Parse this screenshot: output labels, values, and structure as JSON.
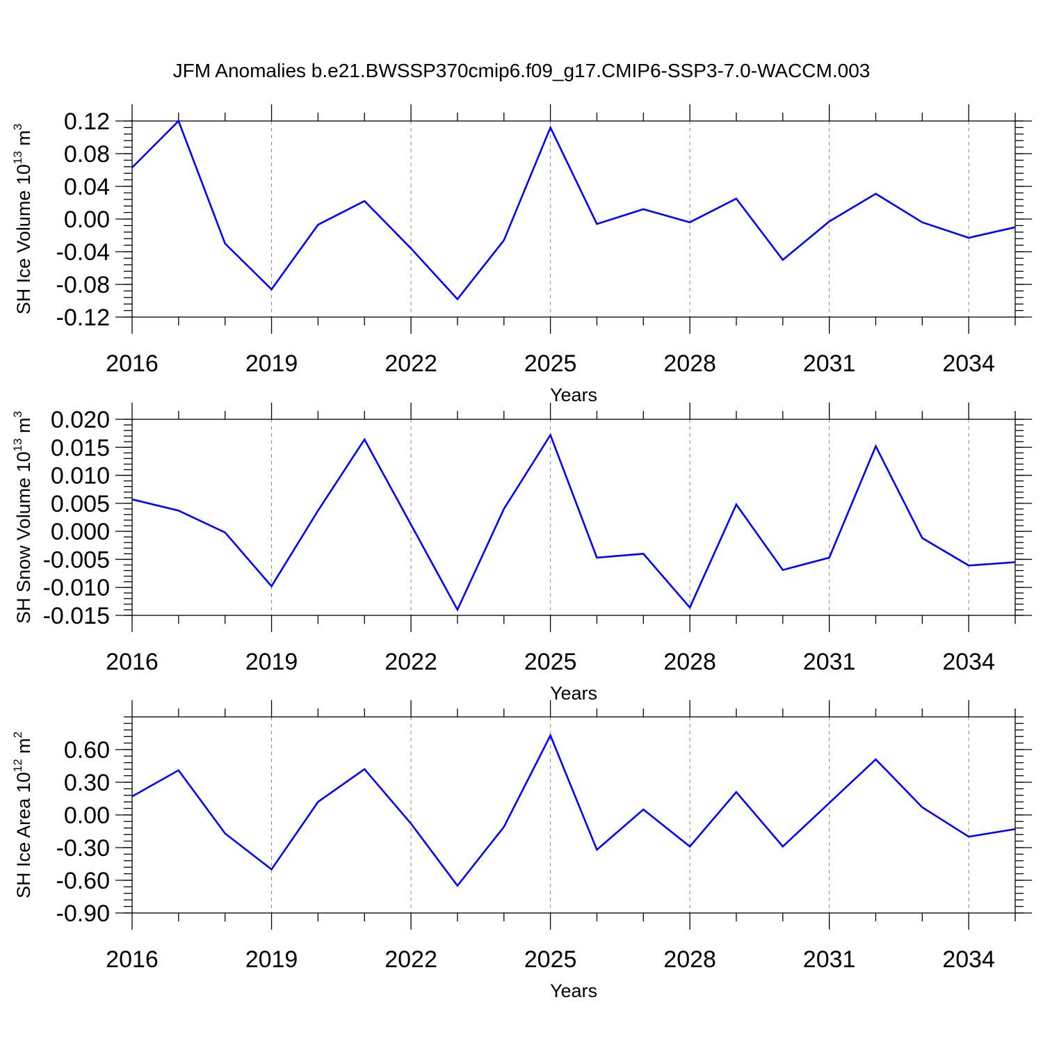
{
  "title": "JFM Anomalies b.e21.BWSSP370cmip6.f09_g17.CMIP6-SSP3-7.0-WACCM.003",
  "colors": {
    "line": "#0000ff",
    "axes": "#000000",
    "grid": "#888888",
    "background": "#ffffff"
  },
  "chart_data": [
    {
      "type": "line",
      "xlabel": "Years",
      "ylabel": {
        "prefix": "SH Ice Volume 10",
        "exponent": "13",
        "unit": " m",
        "unit_exponent": "3"
      },
      "xlim": [
        2016,
        2035
      ],
      "ylim": [
        -0.12,
        0.12
      ],
      "x_ticks": [
        "2016",
        "2019",
        "2022",
        "2025",
        "2028",
        "2031",
        "2034"
      ],
      "y_ticks": [
        "0.12",
        "0.08",
        "0.04",
        "0.00",
        "-0.04",
        "-0.08",
        "-0.12"
      ],
      "y_tick_values": [
        0.12,
        0.08,
        0.04,
        0.0,
        -0.04,
        -0.08,
        -0.12
      ],
      "grid": "vertical dashed at labeled years",
      "series": [
        {
          "x": [
            2016,
            2017,
            2018,
            2019,
            2020,
            2021,
            2022,
            2023,
            2024,
            2025,
            2026,
            2027,
            2028,
            2029,
            2030,
            2031,
            2032,
            2033,
            2034,
            2035
          ],
          "values": [
            0.063,
            0.12,
            -0.03,
            -0.086,
            -0.007,
            0.022,
            -0.036,
            -0.098,
            -0.026,
            0.112,
            -0.006,
            0.012,
            -0.004,
            0.025,
            -0.05,
            -0.003,
            0.031,
            -0.004,
            -0.023,
            -0.01
          ]
        }
      ]
    },
    {
      "type": "line",
      "xlabel": "Years",
      "ylabel": {
        "prefix": "SH Snow Volume 10",
        "exponent": "13",
        "unit": " m",
        "unit_exponent": "3"
      },
      "xlim": [
        2016,
        2035
      ],
      "ylim": [
        -0.015,
        0.02
      ],
      "x_ticks": [
        "2016",
        "2019",
        "2022",
        "2025",
        "2028",
        "2031",
        "2034"
      ],
      "y_ticks": [
        "0.020",
        "0.015",
        "0.010",
        "0.005",
        "0.000",
        "-0.005",
        "-0.010",
        "-0.015"
      ],
      "y_tick_values": [
        0.02,
        0.015,
        0.01,
        0.005,
        0.0,
        -0.005,
        -0.01,
        -0.015
      ],
      "grid": "vertical dashed at labeled years",
      "series": [
        {
          "x": [
            2016,
            2017,
            2018,
            2019,
            2020,
            2021,
            2022,
            2023,
            2024,
            2025,
            2026,
            2027,
            2028,
            2029,
            2030,
            2031,
            2032,
            2033,
            2034,
            2035
          ],
          "values": [
            0.0057,
            0.0037,
            -0.0002,
            -0.0098,
            0.0037,
            0.0164,
            0.0012,
            -0.014,
            0.004,
            0.0172,
            -0.0047,
            -0.004,
            -0.0136,
            0.0048,
            -0.0069,
            -0.0047,
            0.0152,
            -0.0012,
            -0.0061,
            -0.0055
          ]
        }
      ]
    },
    {
      "type": "line",
      "xlabel": "Years",
      "ylabel": {
        "prefix": "SH Ice Area 10",
        "exponent": "12",
        "unit": " m",
        "unit_exponent": "2"
      },
      "xlim": [
        2016,
        2035
      ],
      "ylim": [
        -0.9,
        0.9
      ],
      "x_ticks": [
        "2016",
        "2019",
        "2022",
        "2025",
        "2028",
        "2031",
        "2034"
      ],
      "y_ticks": [
        "0.60",
        "0.30",
        "0.00",
        "-0.30",
        "-0.60",
        "-0.90"
      ],
      "y_tick_values": [
        0.6,
        0.3,
        0.0,
        -0.3,
        -0.6,
        -0.9
      ],
      "grid": "vertical dashed at labeled years",
      "series": [
        {
          "x": [
            2016,
            2017,
            2018,
            2019,
            2020,
            2021,
            2022,
            2023,
            2024,
            2025,
            2026,
            2027,
            2028,
            2029,
            2030,
            2031,
            2032,
            2033,
            2034,
            2035
          ],
          "values": [
            0.17,
            0.41,
            -0.17,
            -0.5,
            0.12,
            0.42,
            -0.08,
            -0.65,
            -0.11,
            0.73,
            -0.32,
            0.05,
            -0.29,
            0.21,
            -0.29,
            0.11,
            0.51,
            0.07,
            -0.2,
            -0.13
          ]
        }
      ]
    }
  ]
}
